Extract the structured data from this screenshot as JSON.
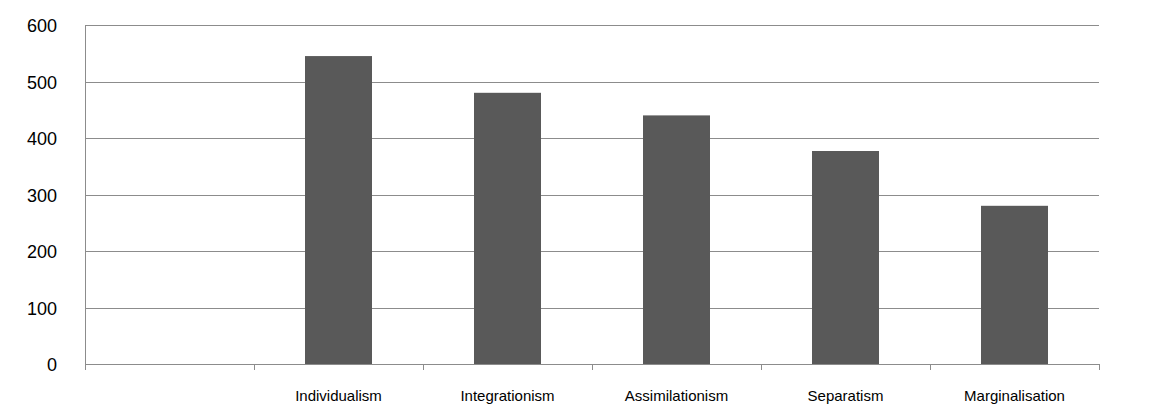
{
  "chart_data": {
    "type": "bar",
    "categories": [
      null,
      "Individualism",
      "Integrationism",
      "Assimilationism",
      "Separatism",
      "Marginalisation"
    ],
    "values": [
      null,
      545,
      480,
      440,
      377,
      280
    ],
    "color": "#595959",
    "ylim": [
      0,
      600
    ],
    "yticks": [
      0,
      100,
      200,
      300,
      400,
      500,
      600
    ],
    "grid": true
  }
}
